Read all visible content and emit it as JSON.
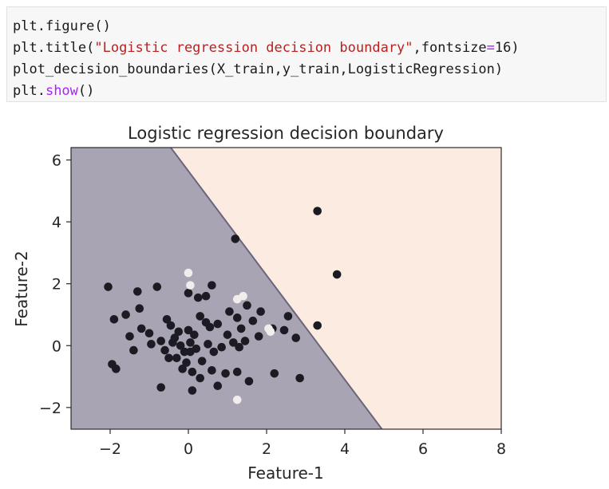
{
  "code_cell": {
    "lines": [
      [
        {
          "t": "plt.figure()",
          "k": "call"
        }
      ],
      [
        {
          "t": "plt.title(",
          "k": "call"
        },
        {
          "t": "\"Logistic regression decision boundary\"",
          "k": "str"
        },
        {
          "t": ",fontsize",
          "k": "call"
        },
        {
          "t": "=",
          "k": "op"
        },
        {
          "t": "16)",
          "k": "call"
        }
      ],
      [
        {
          "t": "plot_decision_boundaries(X_train,y_train,LogisticRegression)",
          "k": "call"
        }
      ],
      [
        {
          "t": "plt.",
          "k": "call"
        },
        {
          "t": "show",
          "k": "op"
        },
        {
          "t": "()",
          "k": "call"
        }
      ]
    ]
  },
  "chart_data": {
    "type": "scatter",
    "title": "Logistic regression decision boundary",
    "xlabel": "Feature-1",
    "ylabel": "Feature-2",
    "xlim": [
      -3,
      8
    ],
    "ylim": [
      -2.7,
      6.4
    ],
    "xticks": [
      -2,
      0,
      2,
      4,
      6,
      8
    ],
    "yticks": [
      -2,
      0,
      2,
      4,
      6
    ],
    "tick_labels_x": [
      "−2",
      "0",
      "2",
      "4",
      "6",
      "8"
    ],
    "tick_labels_y": [
      "−2",
      "0",
      "2",
      "4",
      "6"
    ],
    "decision_boundary": [
      [
        -0.45,
        6.4
      ],
      [
        4.95,
        -2.7
      ]
    ],
    "region_colors": {
      "class_0": "#a9a4b4",
      "class_1": "#fcebe0"
    },
    "grid": false,
    "series": [
      {
        "color": "#1c1a22",
        "points": [
          [
            -2.05,
            1.9
          ],
          [
            -1.9,
            0.85
          ],
          [
            -1.95,
            -0.6
          ],
          [
            -1.85,
            -0.75
          ],
          [
            -1.6,
            1.0
          ],
          [
            -1.5,
            0.3
          ],
          [
            -1.4,
            -0.15
          ],
          [
            -1.25,
            1.2
          ],
          [
            -1.3,
            1.75
          ],
          [
            -1.2,
            0.55
          ],
          [
            -1.0,
            0.4
          ],
          [
            -0.95,
            0.05
          ],
          [
            -0.8,
            1.9
          ],
          [
            -0.7,
            0.15
          ],
          [
            -0.7,
            -1.35
          ],
          [
            -0.55,
            0.85
          ],
          [
            -0.5,
            -0.4
          ],
          [
            -0.45,
            0.65
          ],
          [
            -0.4,
            0.1
          ],
          [
            -0.3,
            -0.4
          ],
          [
            -0.25,
            0.45
          ],
          [
            -0.2,
            0.0
          ],
          [
            -0.1,
            -0.2
          ],
          [
            -0.05,
            -0.55
          ],
          [
            0.0,
            1.7
          ],
          [
            0.0,
            0.5
          ],
          [
            0.05,
            0.1
          ],
          [
            0.05,
            -0.2
          ],
          [
            0.1,
            -0.85
          ],
          [
            0.1,
            -1.45
          ],
          [
            0.15,
            0.35
          ],
          [
            0.2,
            -0.1
          ],
          [
            0.25,
            1.55
          ],
          [
            0.3,
            0.95
          ],
          [
            0.35,
            -0.5
          ],
          [
            0.45,
            1.6
          ],
          [
            0.5,
            0.05
          ],
          [
            0.55,
            0.6
          ],
          [
            0.65,
            -0.2
          ],
          [
            0.6,
            -0.8
          ],
          [
            0.75,
            0.7
          ],
          [
            0.75,
            -1.3
          ],
          [
            0.6,
            1.95
          ],
          [
            0.95,
            -0.9
          ],
          [
            1.0,
            0.35
          ],
          [
            1.05,
            1.1
          ],
          [
            1.15,
            0.1
          ],
          [
            1.25,
            0.9
          ],
          [
            1.3,
            -0.05
          ],
          [
            1.25,
            -0.85
          ],
          [
            1.2,
            3.45
          ],
          [
            1.35,
            0.55
          ],
          [
            1.45,
            0.15
          ],
          [
            1.5,
            1.3
          ],
          [
            1.55,
            -1.15
          ],
          [
            1.65,
            0.8
          ],
          [
            1.85,
            1.1
          ],
          [
            1.8,
            0.3
          ],
          [
            2.15,
            0.55
          ],
          [
            2.2,
            -0.9
          ],
          [
            2.45,
            0.5
          ],
          [
            2.55,
            0.95
          ],
          [
            2.75,
            0.25
          ],
          [
            2.85,
            -1.05
          ],
          [
            3.3,
            0.65
          ],
          [
            3.3,
            4.35
          ],
          [
            3.8,
            2.3
          ],
          [
            -0.35,
            0.25
          ],
          [
            0.85,
            -0.05
          ],
          [
            0.45,
            0.75
          ],
          [
            -0.15,
            -0.75
          ],
          [
            0.3,
            -1.05
          ],
          [
            -0.6,
            -0.15
          ]
        ]
      },
      {
        "color": "#f2ecec",
        "points": [
          [
            0.0,
            2.35
          ],
          [
            0.05,
            1.95
          ],
          [
            1.25,
            1.5
          ],
          [
            1.4,
            1.6
          ],
          [
            2.05,
            0.55
          ],
          [
            2.1,
            0.45
          ],
          [
            1.25,
            -1.75
          ]
        ]
      }
    ]
  }
}
